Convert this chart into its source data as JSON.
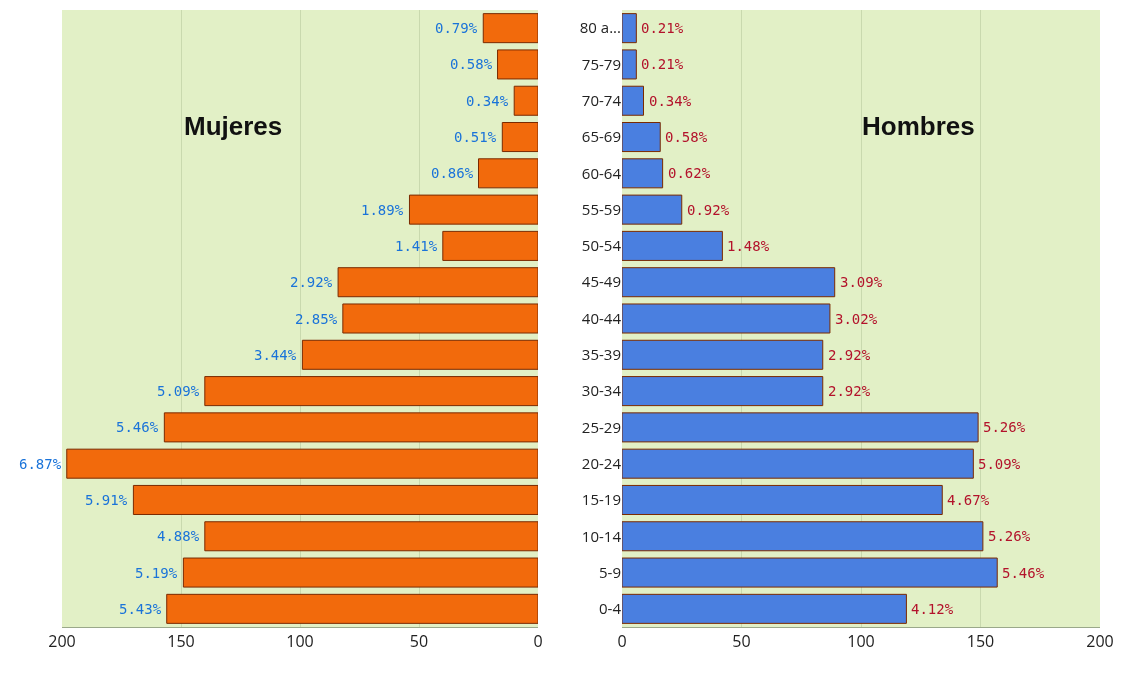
{
  "chart_data": [
    {
      "type": "bar",
      "orientation": "horizontal",
      "categories": [
        "80 a...",
        "75-79",
        "70-74",
        "65-69",
        "60-64",
        "55-59",
        "50-54",
        "45-49",
        "40-44",
        "35-39",
        "30-34",
        "25-29",
        "20-24",
        "15-19",
        "10-14",
        "5-9",
        "0-4"
      ],
      "series": [
        {
          "name": "Mujeres",
          "color": "#f26a0c",
          "values": [
            23,
            17,
            10,
            15,
            25,
            54,
            40,
            84,
            82,
            99,
            140,
            157,
            198,
            170,
            140,
            149,
            156
          ]
        }
      ],
      "annotations": [
        {
          "text": "0.79%",
          "x": 23,
          "y": "80 a..."
        },
        {
          "text": "0.58%",
          "x": 17,
          "y": "75-79"
        },
        {
          "text": "0.34%",
          "x": 10,
          "y": "70-74"
        },
        {
          "text": "0.51%",
          "x": 15,
          "y": "65-69"
        },
        {
          "text": "0.86%",
          "x": 25,
          "y": "60-64"
        },
        {
          "text": "1.89%",
          "x": 54,
          "y": "55-59"
        },
        {
          "text": "1.41%",
          "x": 40,
          "y": "50-54"
        },
        {
          "text": "2.92%",
          "x": 84,
          "y": "45-49"
        },
        {
          "text": "2.85%",
          "x": 82,
          "y": "40-44"
        },
        {
          "text": "3.44%",
          "x": 99,
          "y": "35-39"
        },
        {
          "text": "5.09%",
          "x": 140,
          "y": "30-34"
        },
        {
          "text": "5.46%",
          "x": 157,
          "y": "25-29"
        },
        {
          "text": "6.87%",
          "x": 198,
          "y": "20-24"
        },
        {
          "text": "5.91%",
          "x": 170,
          "y": "15-19"
        },
        {
          "text": "4.88%",
          "x": 140,
          "y": "10-14"
        },
        {
          "text": "5.19%",
          "x": 149,
          "y": "5-9"
        },
        {
          "text": "5.43%",
          "x": 156,
          "y": "0-4"
        }
      ],
      "xlim": [
        200,
        0
      ],
      "xticks": [
        200,
        150,
        100,
        50,
        0
      ],
      "grid": "x",
      "legend": false,
      "tick_labels": "x"
    },
    {
      "type": "bar",
      "orientation": "horizontal",
      "categories": [
        "80 a...",
        "75-79",
        "70-74",
        "65-69",
        "60-64",
        "55-59",
        "50-54",
        "45-49",
        "40-44",
        "35-39",
        "30-34",
        "25-29",
        "20-24",
        "15-19",
        "10-14",
        "5-9",
        "0-4"
      ],
      "series": [
        {
          "name": "Hombres",
          "color": "#4a7fe0",
          "values": [
            6,
            6,
            9,
            16,
            17,
            25,
            42,
            89,
            87,
            84,
            84,
            149,
            147,
            134,
            151,
            157,
            119
          ]
        }
      ],
      "annotations": [
        {
          "text": "0.21%",
          "x": 6,
          "y": "80 a..."
        },
        {
          "text": "0.21%",
          "x": 6,
          "y": "75-79"
        },
        {
          "text": "0.34%",
          "x": 9,
          "y": "70-74"
        },
        {
          "text": "0.58%",
          "x": 16,
          "y": "65-69"
        },
        {
          "text": "0.62%",
          "x": 17,
          "y": "60-64"
        },
        {
          "text": "0.92%",
          "x": 25,
          "y": "55-59"
        },
        {
          "text": "1.48%",
          "x": 42,
          "y": "50-54"
        },
        {
          "text": "3.09%",
          "x": 89,
          "y": "45-49"
        },
        {
          "text": "3.02%",
          "x": 87,
          "y": "40-44"
        },
        {
          "text": "2.92%",
          "x": 84,
          "y": "35-39"
        },
        {
          "text": "2.92%",
          "x": 84,
          "y": "30-34"
        },
        {
          "text": "5.26%",
          "x": 149,
          "y": "25-29"
        },
        {
          "text": "5.09%",
          "x": 147,
          "y": "20-24"
        },
        {
          "text": "4.67%",
          "x": 134,
          "y": "15-19"
        },
        {
          "text": "5.26%",
          "x": 151,
          "y": "10-14"
        },
        {
          "text": "5.46%",
          "x": 157,
          "y": "5-9"
        },
        {
          "text": "4.12%",
          "x": 119,
          "y": "0-4"
        }
      ],
      "xlim": [
        0,
        200
      ],
      "xticks": [
        0,
        50,
        100,
        150,
        200
      ],
      "grid": "x",
      "legend": false
    }
  ]
}
